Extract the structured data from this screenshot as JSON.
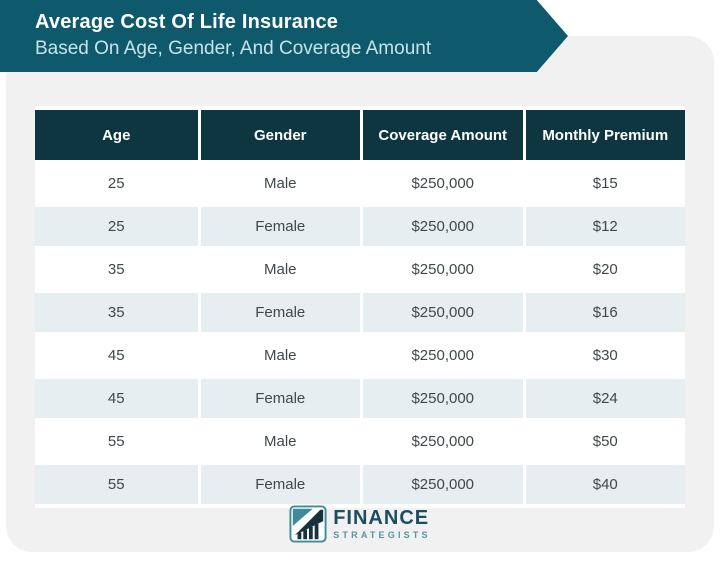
{
  "banner": {
    "title": "Average Cost Of Life Insurance",
    "subtitle": "Based On Age, Gender, And Coverage Amount"
  },
  "chart_data": {
    "type": "table",
    "title": "Average Cost Of Life Insurance",
    "subtitle": "Based On Age, Gender, And Coverage Amount",
    "columns": [
      "Age",
      "Gender",
      "Coverage Amount",
      "Monthly Premium"
    ],
    "rows": [
      [
        "25",
        "Male",
        "$250,000",
        "$15"
      ],
      [
        "25",
        "Female",
        "$250,000",
        "$12"
      ],
      [
        "35",
        "Male",
        "$250,000",
        "$20"
      ],
      [
        "35",
        "Female",
        "$250,000",
        "$16"
      ],
      [
        "45",
        "Male",
        "$250,000",
        "$30"
      ],
      [
        "45",
        "Female",
        "$250,000",
        "$24"
      ],
      [
        "55",
        "Male",
        "$250,000",
        "$50"
      ],
      [
        "55",
        "Female",
        "$250,000",
        "$40"
      ]
    ],
    "layout": {
      "alternating_rows": true,
      "header_style": "dark-teal",
      "column_alignment": "center"
    }
  },
  "footer": {
    "logo_line1": "FINANCE",
    "logo_line2": "STRATEGISTS",
    "logo_icon": "bar-chart-arrow-icon"
  },
  "colors": {
    "banner_teal": "#0e5a6c",
    "header_dark_teal": "#0d3640",
    "row_alt_blue": "#e6eef1",
    "card_gray": "#f0f1f0",
    "cell_text": "#40484c",
    "subtitle_text": "#c7e3e9",
    "logo_dark": "#1d4e5f",
    "logo_teal": "#5b93a0"
  }
}
